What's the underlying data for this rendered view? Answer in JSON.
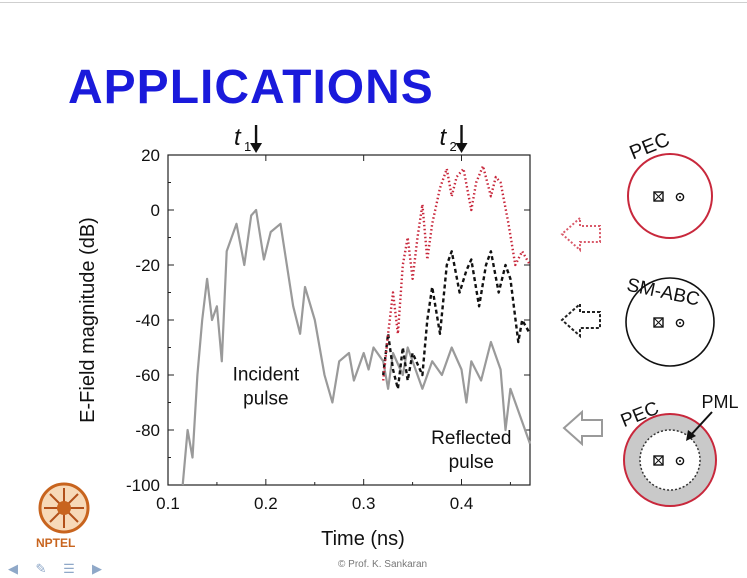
{
  "slide": {
    "title": "APPLICATIONS",
    "credit": "© Prof. K. Sankaran",
    "logo_text": "NPTEL"
  },
  "chart_data": {
    "type": "line",
    "xlabel": "Time (ns)",
    "ylabel": "E-Field magnitude (dB)",
    "xlim": [
      0.1,
      0.47
    ],
    "ylim": [
      -100,
      20
    ],
    "xticks": [
      0.1,
      0.2,
      0.3,
      0.4
    ],
    "yticks": [
      20,
      0,
      -20,
      -40,
      -60,
      -80,
      -100
    ],
    "grid": false,
    "markers": [
      {
        "label": "t",
        "sub": "1",
        "x": 0.19
      },
      {
        "label": "t",
        "sub": "2",
        "x": 0.4
      }
    ],
    "annotations": [
      {
        "lines": [
          "Incident",
          "pulse"
        ],
        "x": 0.2,
        "y": -62
      },
      {
        "lines": [
          "Reflected",
          "pulse"
        ],
        "x": 0.41,
        "y": -85
      }
    ],
    "series": [
      {
        "color": "#9a9a9a",
        "style": "solid",
        "points": [
          [
            0.115,
            -100
          ],
          [
            0.12,
            -80
          ],
          [
            0.125,
            -90
          ],
          [
            0.13,
            -60
          ],
          [
            0.135,
            -40
          ],
          [
            0.14,
            -25
          ],
          [
            0.145,
            -40
          ],
          [
            0.15,
            -35
          ],
          [
            0.155,
            -55
          ],
          [
            0.16,
            -15
          ],
          [
            0.17,
            -5
          ],
          [
            0.178,
            -20
          ],
          [
            0.185,
            -2
          ],
          [
            0.19,
            0
          ],
          [
            0.198,
            -18
          ],
          [
            0.205,
            -8
          ],
          [
            0.215,
            -5
          ],
          [
            0.228,
            -35
          ],
          [
            0.235,
            -45
          ],
          [
            0.24,
            -28
          ],
          [
            0.25,
            -40
          ],
          [
            0.26,
            -60
          ],
          [
            0.268,
            -70
          ],
          [
            0.275,
            -55
          ],
          [
            0.285,
            -52
          ],
          [
            0.29,
            -62
          ],
          [
            0.3,
            -52
          ],
          [
            0.305,
            -58
          ],
          [
            0.31,
            -50
          ],
          [
            0.32,
            -55
          ],
          [
            0.325,
            -65
          ],
          [
            0.33,
            -52
          ],
          [
            0.34,
            -60
          ],
          [
            0.345,
            -50
          ],
          [
            0.35,
            -55
          ],
          [
            0.36,
            -65
          ],
          [
            0.37,
            -55
          ],
          [
            0.38,
            -60
          ],
          [
            0.39,
            -50
          ],
          [
            0.4,
            -58
          ],
          [
            0.405,
            -70
          ],
          [
            0.41,
            -55
          ],
          [
            0.42,
            -62
          ],
          [
            0.43,
            -48
          ],
          [
            0.44,
            -58
          ],
          [
            0.445,
            -80
          ],
          [
            0.45,
            -65
          ],
          [
            0.46,
            -75
          ],
          [
            0.47,
            -85
          ]
        ]
      },
      {
        "color": "#111111",
        "style": "dashed",
        "points": [
          [
            0.32,
            -60
          ],
          [
            0.325,
            -45
          ],
          [
            0.33,
            -58
          ],
          [
            0.335,
            -65
          ],
          [
            0.34,
            -50
          ],
          [
            0.345,
            -62
          ],
          [
            0.35,
            -52
          ],
          [
            0.36,
            -60
          ],
          [
            0.365,
            -40
          ],
          [
            0.37,
            -28
          ],
          [
            0.378,
            -45
          ],
          [
            0.385,
            -20
          ],
          [
            0.39,
            -15
          ],
          [
            0.398,
            -30
          ],
          [
            0.405,
            -22
          ],
          [
            0.41,
            -18
          ],
          [
            0.418,
            -35
          ],
          [
            0.425,
            -20
          ],
          [
            0.43,
            -15
          ],
          [
            0.438,
            -30
          ],
          [
            0.445,
            -20
          ],
          [
            0.45,
            -25
          ],
          [
            0.458,
            -48
          ],
          [
            0.462,
            -40
          ],
          [
            0.47,
            -45
          ]
        ]
      },
      {
        "color": "#c8283c",
        "style": "dotted",
        "points": [
          [
            0.32,
            -62
          ],
          [
            0.325,
            -45
          ],
          [
            0.33,
            -30
          ],
          [
            0.335,
            -45
          ],
          [
            0.34,
            -20
          ],
          [
            0.345,
            -10
          ],
          [
            0.35,
            -25
          ],
          [
            0.355,
            -10
          ],
          [
            0.36,
            2
          ],
          [
            0.365,
            -18
          ],
          [
            0.37,
            -5
          ],
          [
            0.378,
            8
          ],
          [
            0.385,
            15
          ],
          [
            0.39,
            5
          ],
          [
            0.395,
            12
          ],
          [
            0.402,
            15
          ],
          [
            0.41,
            0
          ],
          [
            0.415,
            10
          ],
          [
            0.422,
            16
          ],
          [
            0.43,
            5
          ],
          [
            0.435,
            12
          ],
          [
            0.44,
            10
          ],
          [
            0.448,
            -5
          ],
          [
            0.455,
            -20
          ],
          [
            0.462,
            -15
          ],
          [
            0.47,
            -20
          ]
        ]
      }
    ]
  },
  "side_diagrams": [
    {
      "label": "PEC",
      "ring_color": "#c8283c",
      "fill": "#ffffff"
    },
    {
      "label": "SM-ABC",
      "ring_color": "#111111",
      "fill": "#ffffff"
    },
    {
      "label": "PEC",
      "ring_color": "#c8283c",
      "fill": "#c9c9c9",
      "extra_label": "PML"
    }
  ]
}
